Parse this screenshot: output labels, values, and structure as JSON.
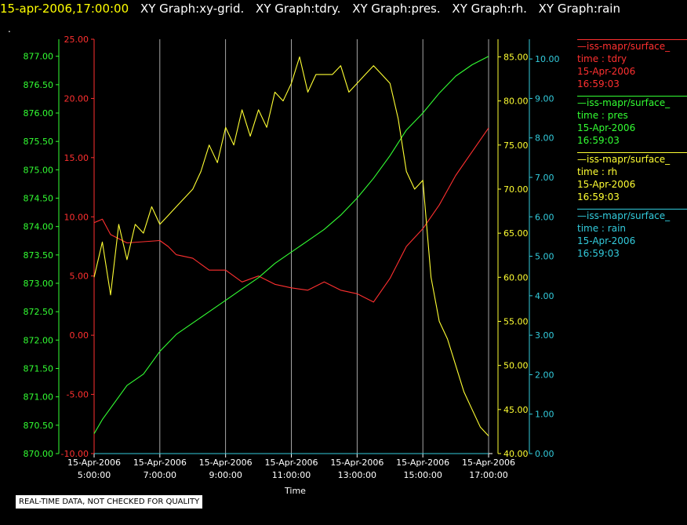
{
  "header": {
    "timestamp": "15-apr-2006,17:00:00",
    "graphs": [
      "XY Graph:xy-grid.",
      "XY Graph:tdry.",
      "XY Graph:pres.",
      "XY Graph:rh.",
      "XY Graph:rain"
    ]
  },
  "dot": ".",
  "quality_note": "REAL-TIME DATA, NOT CHECKED FOR QUALITY",
  "legend": [
    {
      "name": "iss-mapr/surface_",
      "line2": "time : tdry",
      "date": "15-Apr-2006",
      "time": "16:59:03",
      "color": "#ff3030"
    },
    {
      "name": "iss-mapr/surface_",
      "line2": "time : pres",
      "date": "15-Apr-2006",
      "time": "16:59:03",
      "color": "#33ff33"
    },
    {
      "name": "iss-mapr/surface_",
      "line2": "time : rh",
      "date": "15-Apr-2006",
      "time": "16:59:03",
      "color": "#ffff33"
    },
    {
      "name": "iss-mapr/surface_",
      "line2": "time : rain",
      "date": "15-Apr-2006",
      "time": "16:59:03",
      "color": "#33ccdd"
    }
  ],
  "chart_data": {
    "type": "line",
    "xlabel": "Time",
    "x_ticks": [
      {
        "date": "15-Apr-2006",
        "time": "5:00:00",
        "hour": 5
      },
      {
        "date": "15-Apr-2006",
        "time": "7:00:00",
        "hour": 7
      },
      {
        "date": "15-Apr-2006",
        "time": "9:00:00",
        "hour": 9
      },
      {
        "date": "15-Apr-2006",
        "time": "11:00:00",
        "hour": 11
      },
      {
        "date": "15-Apr-2006",
        "time": "13:00:00",
        "hour": 13
      },
      {
        "date": "15-Apr-2006",
        "time": "15:00:00",
        "hour": 15
      },
      {
        "date": "15-Apr-2006",
        "time": "17:00:00",
        "hour": 17
      }
    ],
    "xlim": [
      5,
      17
    ],
    "grid": "vertical",
    "axes": {
      "tdry": {
        "color": "#ff3030",
        "ylim": [
          -10,
          25
        ],
        "ticks": [
          "-10.00",
          "-5.00",
          "0.00",
          "5.00",
          "10.00",
          "15.00",
          "20.00",
          "25.00"
        ]
      },
      "pres": {
        "color": "#33ff33",
        "ylim": [
          870,
          877.3
        ],
        "ticks": [
          "870.00",
          "870.50",
          "871.00",
          "871.50",
          "872.00",
          "872.50",
          "873.00",
          "873.50",
          "874.00",
          "874.50",
          "875.00",
          "875.50",
          "876.00",
          "876.50",
          "877.00"
        ]
      },
      "rh": {
        "color": "#ffff33",
        "ylim": [
          40,
          87
        ],
        "ticks": [
          "40.00",
          "45.00",
          "50.00",
          "55.00",
          "60.00",
          "65.00",
          "70.00",
          "75.00",
          "80.00",
          "85.00"
        ]
      },
      "rain": {
        "color": "#33ccdd",
        "ylim": [
          0,
          10.5
        ],
        "ticks": [
          "0.00",
          "1.00",
          "2.00",
          "3.00",
          "4.00",
          "5.00",
          "6.00",
          "7.00",
          "8.00",
          "9.00",
          "10.00"
        ]
      }
    },
    "series": [
      {
        "name": "tdry",
        "axis": "tdry",
        "x": [
          5,
          5.25,
          5.5,
          6,
          6.5,
          7,
          7.25,
          7.5,
          8,
          8.5,
          9,
          9.5,
          10,
          10.5,
          11,
          11.5,
          12,
          12.5,
          13,
          13.5,
          14,
          14.5,
          15,
          15.5,
          16,
          16.5,
          17
        ],
        "y": [
          9.5,
          9.8,
          8.5,
          7.8,
          7.9,
          8.0,
          7.5,
          6.8,
          6.5,
          5.5,
          5.5,
          4.5,
          5.0,
          4.3,
          4.0,
          3.8,
          4.5,
          3.8,
          3.5,
          2.8,
          4.8,
          7.5,
          9.0,
          11.0,
          13.5,
          15.5,
          17.5
        ]
      },
      {
        "name": "pres",
        "axis": "pres",
        "x": [
          5,
          5.25,
          5.5,
          6,
          6.5,
          7,
          7.5,
          8,
          8.5,
          9,
          9.5,
          10,
          10.5,
          11,
          11.5,
          12,
          12.5,
          13,
          13.5,
          14,
          14.5,
          15,
          15.5,
          16,
          16.5,
          17
        ],
        "y": [
          870.35,
          870.6,
          870.8,
          871.2,
          871.4,
          871.8,
          872.1,
          872.3,
          872.5,
          872.7,
          872.9,
          873.1,
          873.35,
          873.55,
          873.75,
          873.95,
          874.2,
          874.5,
          874.85,
          875.25,
          875.7,
          876.0,
          876.35,
          876.65,
          876.85,
          877.0
        ]
      },
      {
        "name": "rh",
        "axis": "rh",
        "x": [
          5,
          5.25,
          5.5,
          5.75,
          6,
          6.25,
          6.5,
          6.75,
          7,
          7.25,
          7.5,
          7.75,
          8,
          8.25,
          8.5,
          8.75,
          9,
          9.25,
          9.5,
          9.75,
          10,
          10.25,
          10.5,
          10.75,
          11,
          11.25,
          11.5,
          11.75,
          12,
          12.25,
          12.5,
          12.75,
          13,
          13.25,
          13.5,
          13.75,
          14,
          14.25,
          14.5,
          14.75,
          15,
          15.25,
          15.5,
          15.75,
          16,
          16.25,
          16.5,
          16.75,
          17
        ],
        "y": [
          60,
          64,
          58,
          66,
          62,
          66,
          65,
          68,
          66,
          67,
          68,
          69,
          70,
          72,
          75,
          73,
          77,
          75,
          79,
          76,
          79,
          77,
          81,
          80,
          82,
          85,
          81,
          83,
          83,
          83,
          84,
          81,
          82,
          83,
          84,
          83,
          82,
          78,
          72,
          70,
          71,
          60,
          55,
          53,
          50,
          47,
          45,
          43,
          42
        ]
      },
      {
        "name": "rain",
        "axis": "rain",
        "x": [
          5,
          17
        ],
        "y": [
          0,
          0
        ]
      }
    ]
  }
}
